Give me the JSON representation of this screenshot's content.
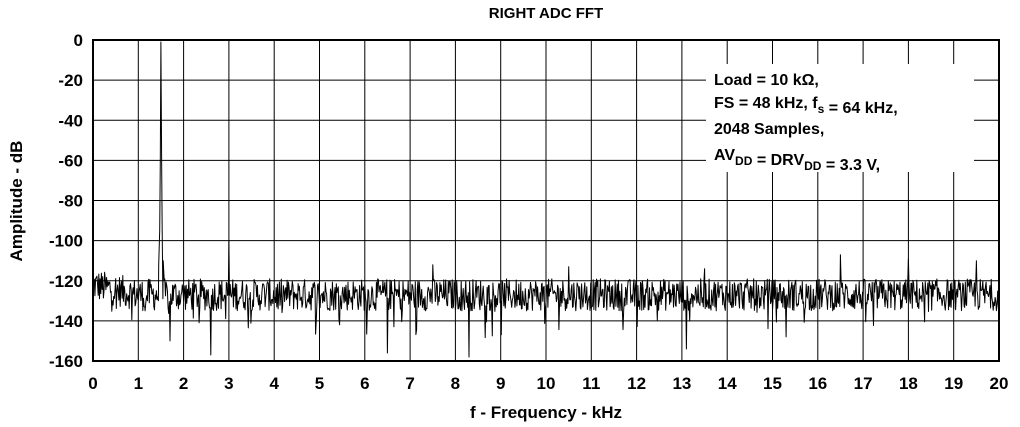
{
  "chart_data": {
    "type": "line",
    "title": "RIGHT ADC FFT",
    "xlabel": "f - Frequency - kHz",
    "ylabel": "Amplitude - dB",
    "xlim": [
      0,
      20
    ],
    "ylim": [
      -160,
      0
    ],
    "x_ticks": [
      "0",
      "1",
      "2",
      "3",
      "4",
      "5",
      "6",
      "7",
      "8",
      "9",
      "10",
      "11",
      "12",
      "13",
      "14",
      "15",
      "16",
      "17",
      "18",
      "19",
      "20"
    ],
    "y_ticks": [
      "0",
      "-20",
      "-40",
      "-60",
      "-80",
      "-100",
      "-120",
      "-140",
      "-160"
    ],
    "grid": true,
    "legend_lines": [
      {
        "parts": [
          {
            "text": "Load = 10 kΩ,"
          }
        ]
      },
      {
        "parts": [
          {
            "text": "FS = 48 kHz, f"
          },
          {
            "text": "s",
            "sub": true
          },
          {
            "text": " = 64 kHz,"
          }
        ]
      },
      {
        "parts": [
          {
            "text": "2048 Samples,"
          }
        ]
      },
      {
        "parts": [
          {
            "text": "AV"
          },
          {
            "text": "DD",
            "sub": true
          },
          {
            "text": " = DRV"
          },
          {
            "text": "DD",
            "sub": true
          },
          {
            "text": " = 3.3 V,"
          }
        ]
      }
    ],
    "series": [
      {
        "noise_floor_db": -127,
        "peaks": [
          {
            "x": 1.5,
            "y": -1
          },
          {
            "x": 1.45,
            "y": -112
          },
          {
            "x": 1.55,
            "y": -110
          },
          {
            "x": 3.0,
            "y": -100
          },
          {
            "x": 7.5,
            "y": -112
          },
          {
            "x": 10.5,
            "y": -113
          },
          {
            "x": 13.5,
            "y": -114
          },
          {
            "x": 16.5,
            "y": -107
          },
          {
            "x": 18.0,
            "y": -109
          },
          {
            "x": 19.5,
            "y": -110
          }
        ],
        "dips": [
          {
            "x": 1.15,
            "y": -135
          },
          {
            "x": 1.7,
            "y": -150
          },
          {
            "x": 2.6,
            "y": -157
          },
          {
            "x": 6.5,
            "y": -156
          },
          {
            "x": 8.3,
            "y": -158
          },
          {
            "x": 13.1,
            "y": -154
          },
          {
            "x": 15.3,
            "y": -148
          }
        ]
      }
    ]
  }
}
